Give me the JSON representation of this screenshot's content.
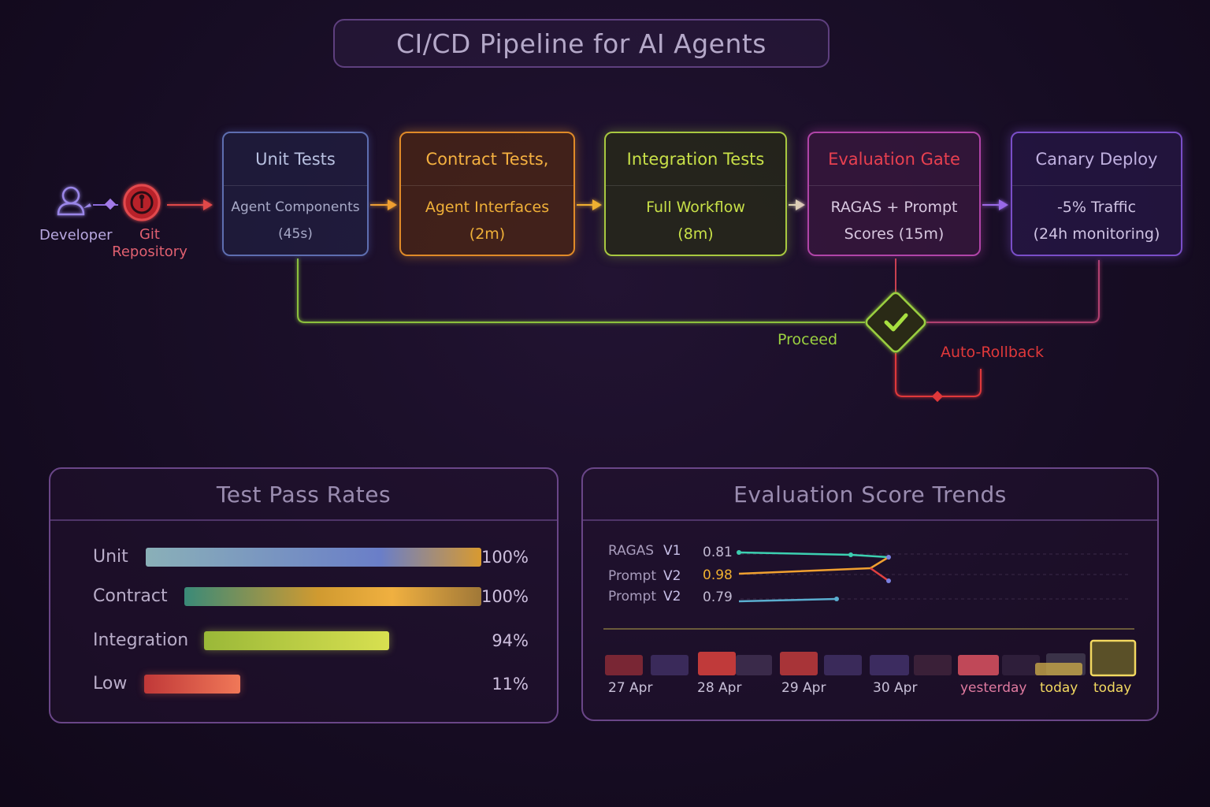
{
  "title": "CI/CD Pipeline for AI Agents",
  "source": {
    "developer_label": "Developer",
    "repo_label": "Git Repository",
    "developer_icon": "user-icon",
    "repo_icon": "git-icon"
  },
  "stages": [
    {
      "title": "Unit Tests",
      "line1": "Agent Components",
      "line2": "(45s)",
      "color": "#7d8fd6"
    },
    {
      "title": "Contract Tests,",
      "line1": "Agent Interfaces",
      "line2": "(2m)",
      "color": "#f0a030"
    },
    {
      "title": "Integration Tests",
      "line1": "Full Workflow",
      "line2": "(8m)",
      "color": "#b9d64a"
    },
    {
      "title": "Evaluation Gate",
      "line1": "RAGAS + Prompt",
      "line2": "Scores (15m)",
      "color": "#d04ab0"
    },
    {
      "title": "Canary Deploy",
      "line1": "-5% Traffic",
      "line2": "(24h monitoring)",
      "color": "#8c5ae0"
    }
  ],
  "gate": {
    "proceed_label": "Proceed",
    "rollback_label": "Auto-Rollback",
    "icon": "check-icon",
    "proceed_color": "#9bd040",
    "rollback_color": "#e0383a"
  },
  "pass_rates": {
    "title": "Test Pass Rates",
    "rows": [
      {
        "label": "Unit",
        "value": "100%"
      },
      {
        "label": "Contract",
        "value": "100%"
      },
      {
        "label": "Integration",
        "value": "94%"
      },
      {
        "label": "Low",
        "value": "11%"
      }
    ]
  },
  "trends": {
    "title": "Evaluation Score Trends",
    "legend": [
      {
        "metric": "RAGAS",
        "version": "V1",
        "score": "0.81",
        "color": "#3ccfb0"
      },
      {
        "metric": "Prompt",
        "version": "V2",
        "score": "0.98",
        "color": "#f0a030"
      },
      {
        "metric": "Prompt",
        "version": "V2",
        "score": "0.79",
        "color": "#5aaed0"
      }
    ],
    "days": [
      {
        "label": "27 Apr",
        "color": "#c8c0d8"
      },
      {
        "label": "28 Apr",
        "color": "#c8c0d8"
      },
      {
        "label": "29 Apr",
        "color": "#c8c0d8"
      },
      {
        "label": "30 Apr",
        "color": "#c8c0d8"
      },
      {
        "label": "yesterday",
        "color": "#e07aa0"
      },
      {
        "label": "today",
        "color": "#f2d860"
      },
      {
        "label": "today",
        "color": "#f2d860"
      }
    ]
  }
}
